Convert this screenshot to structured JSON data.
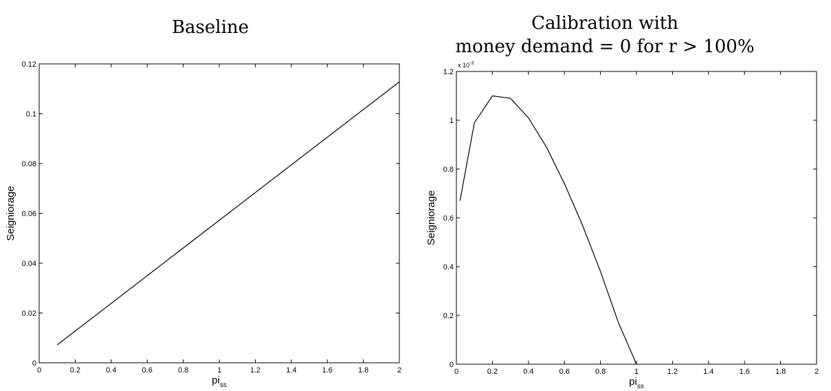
{
  "chart_data": [
    {
      "type": "line",
      "title": "Baseline",
      "title_lines": [
        "Baseline"
      ],
      "xlabel": "pi",
      "xlabel_sub": "ss",
      "ylabel": "Seigniorage",
      "xlim": [
        0,
        2
      ],
      "ylim": [
        0,
        0.12
      ],
      "xticks": [
        0,
        0.2,
        0.4,
        0.6,
        0.8,
        1,
        1.2,
        1.4,
        1.6,
        1.8,
        2
      ],
      "yticks": [
        0,
        0.02,
        0.04,
        0.06,
        0.08,
        0.1,
        0.12
      ],
      "ytick_exponent": "",
      "grid": false,
      "series": [
        {
          "x": [
            0.1,
            2.0
          ],
          "y": [
            0.0072,
            0.1128
          ]
        }
      ]
    },
    {
      "type": "line",
      "title": "Calibration with money demand = 0 for r > 100%",
      "title_lines": [
        "Calibration with",
        "money demand = 0 for r > 100%"
      ],
      "xlabel": "pi",
      "xlabel_sub": "ss",
      "ylabel": "Seigniorage",
      "xlim": [
        0,
        2
      ],
      "ylim": [
        0,
        1.2
      ],
      "xticks": [
        0,
        0.2,
        0.4,
        0.6,
        0.8,
        1,
        1.2,
        1.4,
        1.6,
        1.8,
        2
      ],
      "yticks": [
        0,
        0.2,
        0.4,
        0.6,
        0.8,
        1,
        1.2
      ],
      "ytick_exponent": "x 10",
      "ytick_exponent_power": "-3",
      "grid": false,
      "series": [
        {
          "x": [
            0.02,
            0.1,
            0.2,
            0.3,
            0.4,
            0.5,
            0.6,
            0.7,
            0.8,
            0.9,
            1.0
          ],
          "y": [
            0.67,
            0.99,
            1.1,
            1.09,
            1.01,
            0.89,
            0.74,
            0.57,
            0.38,
            0.17,
            0.0
          ]
        }
      ]
    }
  ]
}
